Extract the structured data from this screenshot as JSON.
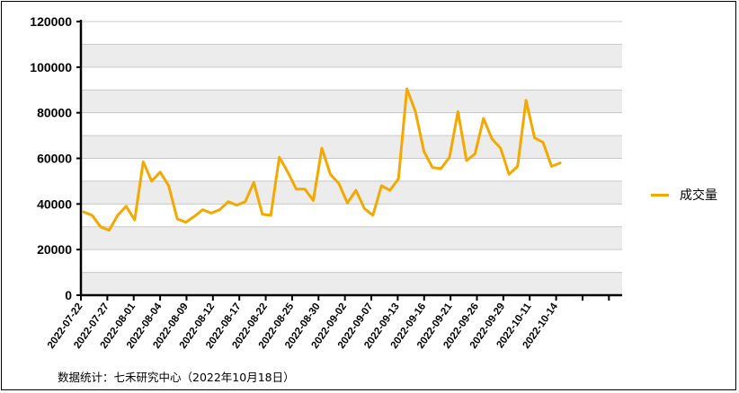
{
  "chart_data": {
    "type": "line",
    "ylim": [
      0,
      120000
    ],
    "y_ticks": [
      "0",
      "20000",
      "40000",
      "60000",
      "80000",
      "100000",
      "120000"
    ],
    "x_tick_labels": [
      "2022-07-22",
      "2022-07-27",
      "2022-08-01",
      "2022-08-04",
      "2022-08-09",
      "2022-08-12",
      "2022-08-17",
      "2022-08-22",
      "2022-08-25",
      "2022-08-30",
      "2022-09-02",
      "2022-09-07",
      "2022-09-13",
      "2022-09-16",
      "2022-09-21",
      "2022-09-26",
      "2022-09-29",
      "2022-10-11",
      "2022-10-14",
      "",
      ""
    ],
    "grid": true,
    "legend_position": "right",
    "series": [
      {
        "name": "成交量",
        "color": "#F5A800",
        "values": [
          36500,
          35000,
          30000,
          28500,
          35000,
          39000,
          33000,
          58500,
          50000,
          54000,
          48000,
          33500,
          32000,
          34500,
          37500,
          36000,
          37500,
          41000,
          39500,
          41000,
          49500,
          35500,
          35000,
          60500,
          54000,
          46500,
          46500,
          41500,
          64500,
          53000,
          49000,
          40500,
          46000,
          38000,
          35000,
          48000,
          46000,
          51000,
          90500,
          80500,
          63000,
          56000,
          55500,
          60500,
          80500,
          59000,
          62000,
          77500,
          68500,
          64500,
          53000,
          56500,
          85500,
          69000,
          67000,
          56500,
          58000
        ]
      }
    ]
  },
  "legend": {
    "label": "成交量"
  },
  "source": "数据统计：七禾研究中心（2022年10月18日）"
}
